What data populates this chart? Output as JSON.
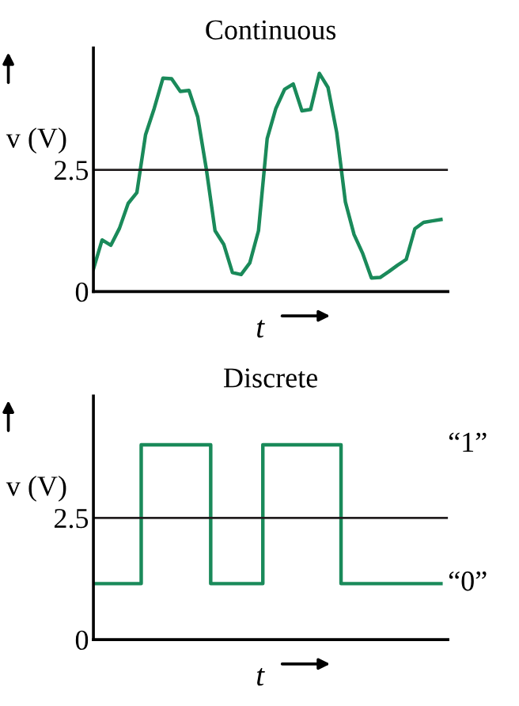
{
  "chart_data": [
    {
      "type": "line",
      "title": "Continuous",
      "xlabel": "t",
      "ylabel": "v (V)",
      "ylim": [
        0,
        5
      ],
      "yticks": [
        0,
        2.5
      ],
      "tick_labels": "y",
      "grid": false,
      "legend": false,
      "ref_lines": [
        {
          "axis": "y",
          "value": 2.5,
          "color": "#231f20"
        }
      ],
      "categories": [
        null,
        null,
        null,
        null,
        null,
        null,
        null,
        null,
        null,
        null,
        null,
        null,
        null,
        null,
        null,
        null,
        null,
        null,
        null,
        null,
        null,
        null,
        null,
        null,
        null,
        null,
        null,
        null,
        null,
        null,
        null,
        null,
        null,
        null,
        null,
        null,
        null,
        null,
        null,
        null,
        null
      ],
      "series": [
        {
          "color": "#1a8a5a",
          "values": [
            0.46,
            1.06,
            0.95,
            1.3,
            1.81,
            2.03,
            3.22,
            3.76,
            4.38,
            4.37,
            4.11,
            4.13,
            3.59,
            2.51,
            1.25,
            0.97,
            0.39,
            0.35,
            0.59,
            1.25,
            3.14,
            3.76,
            4.15,
            4.26,
            3.71,
            3.74,
            4.48,
            4.19,
            3.27,
            1.84,
            1.17,
            0.78,
            0.28,
            0.29,
            0.41,
            0.54,
            0.66,
            1.29,
            1.42,
            1.45,
            1.48
          ]
        }
      ]
    },
    {
      "type": "step",
      "title": "Discrete",
      "xlabel": "t",
      "ylabel": "v (V)",
      "ylim": [
        0,
        5
      ],
      "yticks": [
        0,
        2.5
      ],
      "tick_labels": "y",
      "grid": false,
      "legend": false,
      "ref_lines": [
        {
          "axis": "y",
          "value": 2.5,
          "color": "#231f20"
        }
      ],
      "annotations": [
        "“1”",
        "“0”"
      ],
      "categories": [
        null,
        null,
        null,
        null,
        null,
        null,
        null,
        null,
        null,
        null,
        null,
        null,
        null,
        null,
        null,
        null,
        null,
        null,
        null,
        null,
        null,
        null,
        null,
        null,
        null,
        null,
        null,
        null,
        null,
        null,
        null,
        null,
        null,
        null,
        null,
        null,
        null,
        null,
        null,
        null,
        null
      ],
      "series": [
        {
          "color": "#1a8a5a",
          "values": [
            1.15,
            1.15,
            1.15,
            1.15,
            1.15,
            1.15,
            4.0,
            4.0,
            4.0,
            4.0,
            4.0,
            4.0,
            4.0,
            4.0,
            1.15,
            1.15,
            1.15,
            1.15,
            1.15,
            1.15,
            4.0,
            4.0,
            4.0,
            4.0,
            4.0,
            4.0,
            4.0,
            4.0,
            4.0,
            1.15,
            1.15,
            1.15,
            1.15,
            1.15,
            1.15,
            1.15,
            1.15,
            1.15,
            1.15,
            1.15,
            1.15
          ]
        }
      ]
    }
  ]
}
